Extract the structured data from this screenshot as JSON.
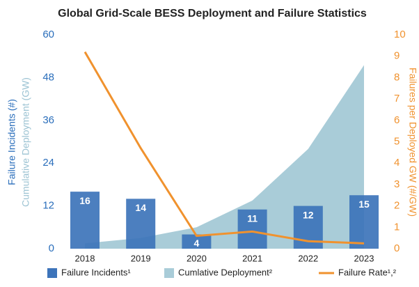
{
  "chart_data": {
    "type": "combo",
    "title": "Global Grid-Scale BESS Deployment and Failure Statistics",
    "ylabel": "Failure Incidents (#)",
    "ylabel2": "Cumulative Deployment (GW)",
    "y2label": "Failures per Deployed GW (#/GW)",
    "categories": [
      "2018",
      "2019",
      "2020",
      "2021",
      "2022",
      "2023"
    ],
    "ylim": [
      0,
      60
    ],
    "yticks": [
      0,
      12,
      24,
      36,
      48,
      60
    ],
    "y2lim": [
      0,
      10
    ],
    "y2ticks": [
      0,
      1,
      2,
      3,
      4,
      5,
      6,
      7,
      8,
      9,
      10
    ],
    "series": [
      {
        "name": "Cumlative Deployment²",
        "type": "area",
        "color": "#a9ccd8",
        "values": [
          1.5,
          3,
          6,
          13.5,
          28,
          51.5
        ]
      },
      {
        "name": "Failure Incidents¹",
        "type": "bar",
        "color": "#3d74ba",
        "values": [
          16,
          14,
          4,
          11,
          12,
          15
        ]
      },
      {
        "name": "Failure Rate¹,²",
        "type": "line",
        "color": "#f0922e",
        "axis": "y2",
        "values": [
          9.2,
          4.7,
          0.6,
          0.8,
          0.35,
          0.25
        ]
      }
    ],
    "legend": "bottom"
  }
}
